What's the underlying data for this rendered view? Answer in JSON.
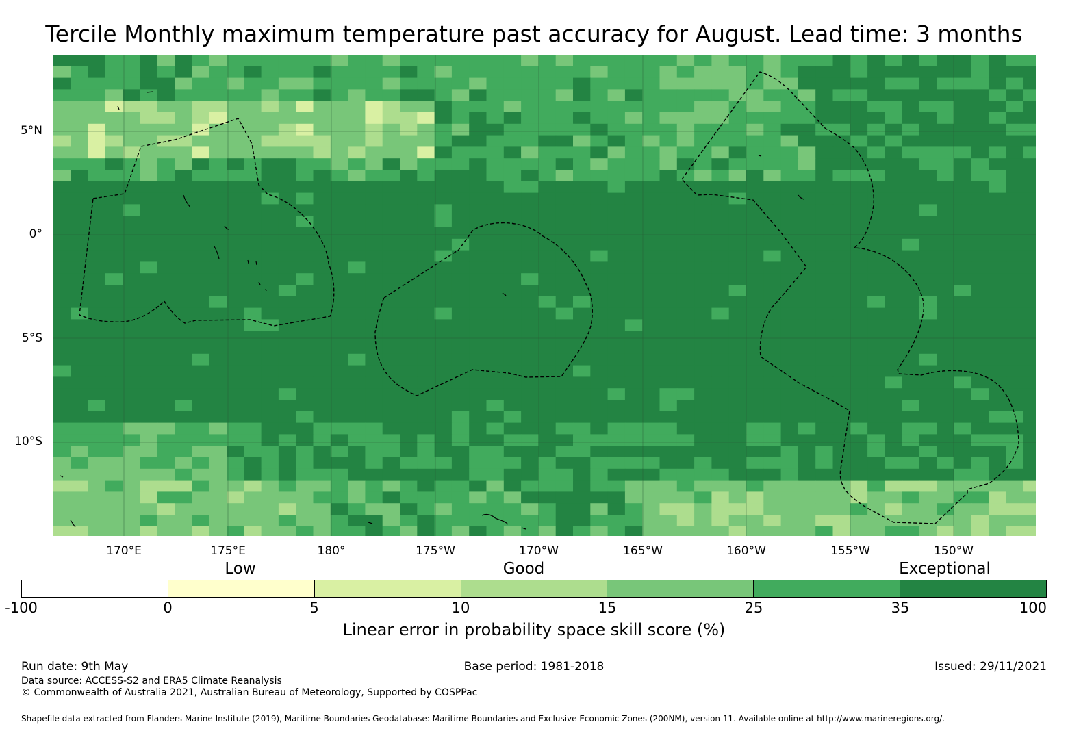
{
  "title": "Tercile Monthly maximum temperature past accuracy for August. Lead time: 3 months",
  "map": {
    "lat_labels": [
      "5°N",
      "0°",
      "5°S",
      "10°S"
    ],
    "lon_labels": [
      "170°E",
      "175°E",
      "180°",
      "175°W",
      "170°W",
      "165°W",
      "160°W",
      "155°W",
      "150°W"
    ],
    "colors": {
      "exceptional_dark": "#238443",
      "very_good": "#41ab5d",
      "good": "#78c679",
      "fair": "#addd8e",
      "low": "#d9f0a3",
      "very_low": "#ffffcc",
      "negative": "#ffffff"
    }
  },
  "legend": {
    "category_labels": [
      "Low",
      "Good",
      "Exceptional"
    ],
    "tick_labels": [
      "-100",
      "0",
      "5",
      "10",
      "15",
      "25",
      "35",
      "100"
    ],
    "colors": [
      "#ffffff",
      "#ffffcc",
      "#d9f0a3",
      "#addd8e",
      "#78c679",
      "#41ab5d",
      "#238443"
    ],
    "title": "Linear error in probability space skill score (%)"
  },
  "footer": {
    "run_date": "Run date: 9th May",
    "base_period": "Base period: 1981-2018",
    "issued": "Issued: 29/11/2021",
    "data_source": "Data source: ACCESS-S2 and ERA5 Climate Reanalysis",
    "copyright": "© Commonwealth of Australia 2021, Australian Bureau of Meteorology, Supported by COSPPac",
    "shapefile": "Shapefile data extracted from Flanders Marine Institute (2019), Maritime Boundaries Geodatabase: Maritime Boundaries and Exclusive Economic Zones (200NM), version 11. Available online at http://www.marineregions.org/."
  }
}
